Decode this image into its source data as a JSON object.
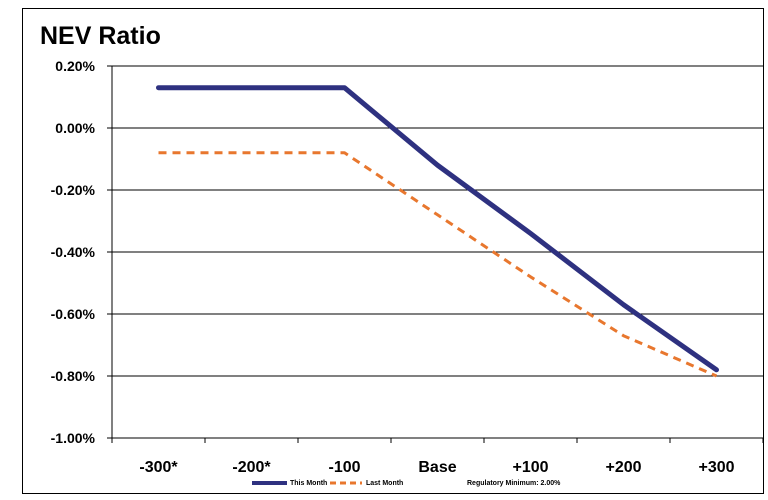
{
  "chart_data": {
    "type": "line",
    "title": "NEV Ratio",
    "categories": [
      "-300*",
      "-200*",
      "-100",
      "Base",
      "+100",
      "+200",
      "+300"
    ],
    "x": [
      -300,
      -200,
      -100,
      0,
      100,
      200,
      300
    ],
    "series": [
      {
        "name": "This Month",
        "color": "#2e3180",
        "style": "solid",
        "points": [
          {
            "x": -300,
            "y": 0.13
          },
          {
            "x": -100,
            "y": 0.13
          },
          {
            "x": 0,
            "y": -0.12
          },
          {
            "x": 100,
            "y": -0.34
          },
          {
            "x": 200,
            "y": -0.57
          },
          {
            "x": 300,
            "y": -0.78
          }
        ]
      },
      {
        "name": "Last Month",
        "color": "#e8772e",
        "style": "dashed",
        "points": [
          {
            "x": -300,
            "y": -0.08
          },
          {
            "x": -100,
            "y": -0.08
          },
          {
            "x": 0,
            "y": -0.28
          },
          {
            "x": 100,
            "y": -0.48
          },
          {
            "x": 200,
            "y": -0.67
          },
          {
            "x": 300,
            "y": -0.8
          }
        ]
      }
    ],
    "yticks": [
      "0.20%",
      "0.00%",
      "-0.20%",
      "-0.40%",
      "-0.60%",
      "-0.80%",
      "-1.00%"
    ],
    "ytick_values": [
      0.2,
      0.0,
      -0.2,
      -0.4,
      -0.6,
      -0.8,
      -1.0
    ],
    "ylim": [
      -1.0,
      0.2
    ],
    "xlim": [
      -350,
      350
    ],
    "grid": "horizontal",
    "legend_position": "bottom",
    "legend_extra": "Regulatory Minimum: 2.00%"
  }
}
